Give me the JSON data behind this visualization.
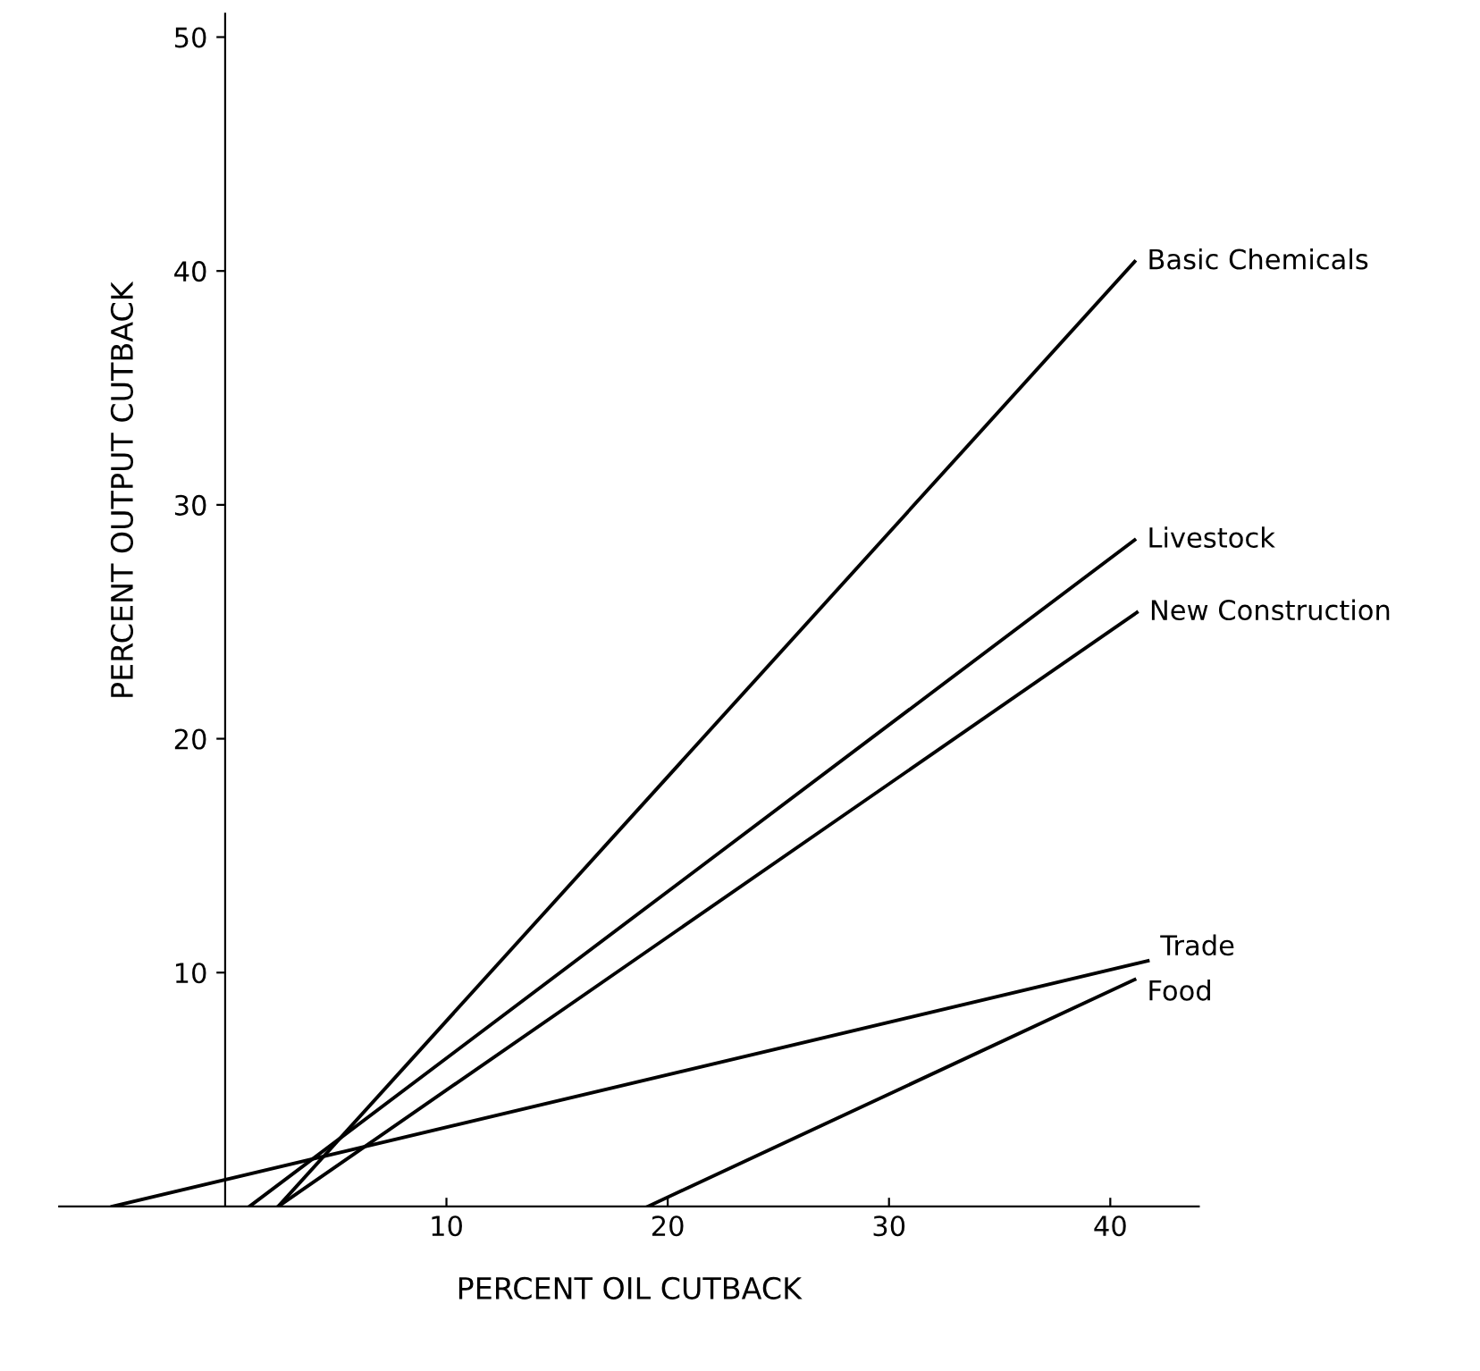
{
  "chart_data": {
    "type": "line",
    "xlabel": "PERCENT OIL CUTBACK",
    "ylabel": "PERCENT OUTPUT CUTBACK",
    "xlim": [
      -7.5,
      44
    ],
    "ylim": [
      0,
      51
    ],
    "xticks": [
      10,
      20,
      30,
      40
    ],
    "yticks": [
      10,
      20,
      30,
      40,
      50
    ],
    "grid": false,
    "legend": false,
    "marker": "none",
    "line_style": "solid",
    "series": [
      {
        "name": "Basic Chemicals",
        "color": "#000000",
        "x": [
          2.4,
          41.1
        ],
        "values": [
          0,
          40.4
        ]
      },
      {
        "name": "Livestock",
        "color": "#000000",
        "x": [
          1.1,
          41.1
        ],
        "values": [
          0,
          28.5
        ]
      },
      {
        "name": "New Construction",
        "color": "#000000",
        "x": [
          2.4,
          41.2
        ],
        "values": [
          0,
          25.4
        ]
      },
      {
        "name": "Trade",
        "color": "#000000",
        "x": [
          -5.1,
          41.7
        ],
        "values": [
          0,
          10.5
        ]
      },
      {
        "name": "Food",
        "color": "#000000",
        "x": [
          19.1,
          41.1
        ],
        "values": [
          0,
          9.7
        ]
      }
    ]
  }
}
